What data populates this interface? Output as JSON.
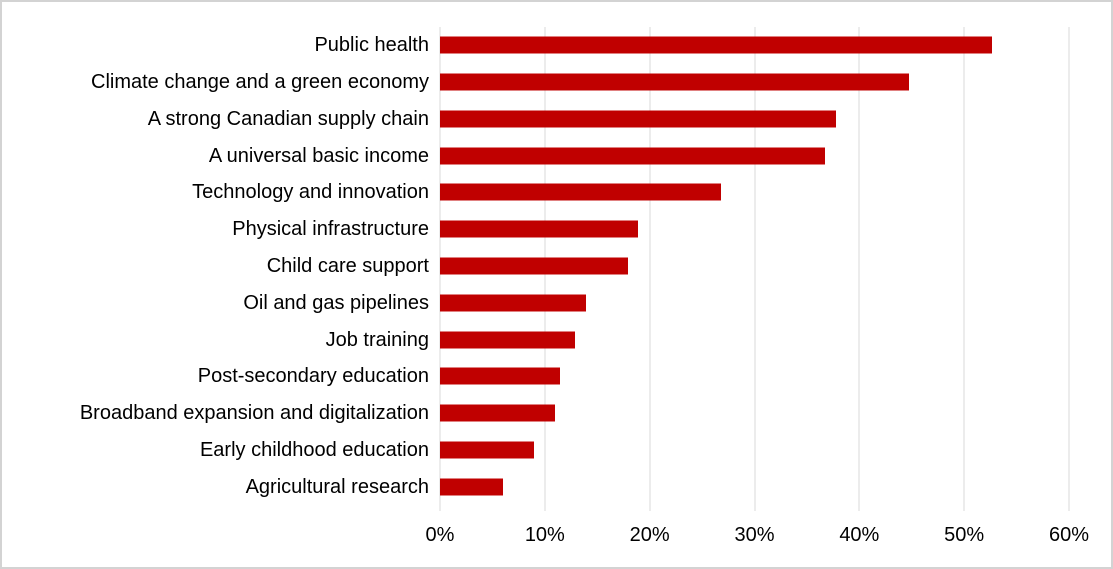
{
  "chart_data": {
    "type": "bar",
    "orientation": "horizontal",
    "title": "",
    "xlabel": "",
    "ylabel": "",
    "categories": [
      "Public health",
      "Climate change and a green economy",
      "A strong Canadian supply chain",
      "A universal basic income",
      "Technology and innovation",
      "Physical infrastructure",
      "Child care support",
      "Oil and gas pipelines",
      "Job training",
      "Post-secondary education",
      "Broadband expansion and digitalization",
      "Early childhood education",
      "Agricultural research"
    ],
    "values": [
      53,
      45,
      38,
      37,
      27,
      19,
      18,
      14,
      13,
      11.5,
      11,
      9,
      6
    ],
    "value_unit": "%",
    "x_axis": {
      "min": 0,
      "max": 60,
      "tick_step": 10,
      "tick_labels": [
        "0%",
        "10%",
        "20%",
        "30%",
        "40%",
        "50%",
        "60%"
      ]
    },
    "grid": true,
    "legend": false,
    "colors": {
      "bar": "#C00000",
      "gridline": "#D9D9D9",
      "text": "#000000",
      "border": "#D3D3D3",
      "background": "#FFFFFF"
    }
  }
}
